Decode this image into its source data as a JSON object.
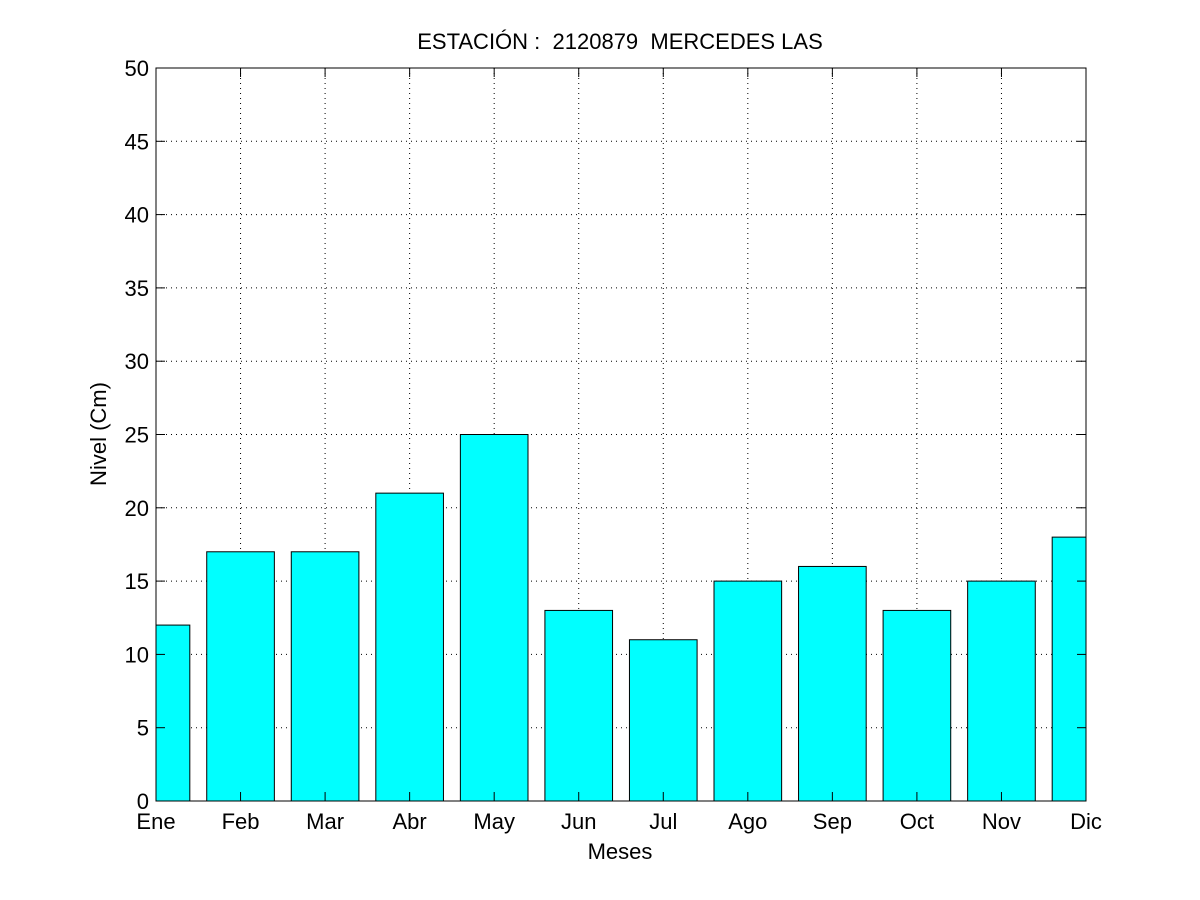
{
  "chart_data": {
    "type": "bar",
    "title": "ESTACIÓN :  2120879  MERCEDES LAS",
    "xlabel": "Meses",
    "ylabel": "Nivel (Cm)",
    "categories": [
      "Ene",
      "Feb",
      "Mar",
      "Abr",
      "May",
      "Jun",
      "Jul",
      "Ago",
      "Sep",
      "Oct",
      "Nov",
      "Dic"
    ],
    "values": [
      12,
      17,
      17,
      21,
      25,
      13,
      11,
      15,
      16,
      13,
      15,
      18
    ],
    "ylim": [
      0,
      50
    ],
    "yticks": [
      0,
      5,
      10,
      15,
      20,
      25,
      30,
      35,
      40,
      45,
      50
    ],
    "grid": true,
    "bar_color": "#00ffff",
    "edge_color": "#000000"
  }
}
